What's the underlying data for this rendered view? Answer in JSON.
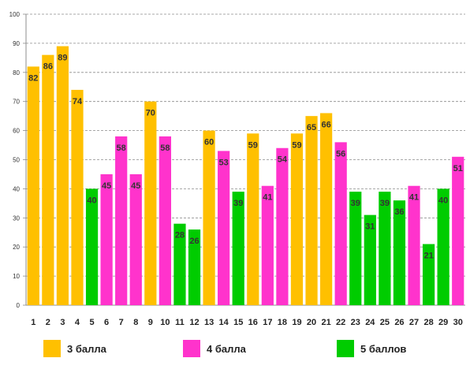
{
  "chart_data": {
    "type": "bar",
    "title": "",
    "xlabel": "",
    "ylabel": "",
    "ylim": [
      0,
      100
    ],
    "y_ticks": [
      0,
      10,
      20,
      30,
      40,
      50,
      60,
      70,
      80,
      90,
      100
    ],
    "grid": true,
    "legend_position": "bottom",
    "categories": [
      "1",
      "2",
      "3",
      "4",
      "5",
      "6",
      "7",
      "8",
      "9",
      "10",
      "11",
      "12",
      "13",
      "14",
      "15",
      "16",
      "17",
      "18",
      "19",
      "20",
      "21",
      "22",
      "23",
      "24",
      "25",
      "26",
      "27",
      "28",
      "29",
      "30"
    ],
    "values": [
      82,
      86,
      89,
      74,
      40,
      45,
      58,
      45,
      70,
      58,
      28,
      26,
      60,
      53,
      39,
      59,
      41,
      54,
      59,
      65,
      66,
      56,
      39,
      31,
      39,
      36,
      41,
      21,
      40,
      51
    ],
    "bar_groups": [
      "3 балла",
      "3 балла",
      "3 балла",
      "3 балла",
      "5 баллов",
      "4 балла",
      "4 балла",
      "4 балла",
      "3 балла",
      "4 балла",
      "5 баллов",
      "5 баллов",
      "3 балла",
      "4 балла",
      "5 баллов",
      "3 балла",
      "4 балла",
      "4 балла",
      "3 балла",
      "3 балла",
      "3 балла",
      "4 балла",
      "5 баллов",
      "5 баллов",
      "5 баллов",
      "5 баллов",
      "4 балла",
      "5 баллов",
      "5 баллов",
      "4 балла"
    ],
    "legend": [
      {
        "name": "3 балла",
        "color": "#FFC000"
      },
      {
        "name": "4 балла",
        "color": "#FF33CC"
      },
      {
        "name": "5 баллов",
        "color": "#00CC00"
      }
    ]
  }
}
